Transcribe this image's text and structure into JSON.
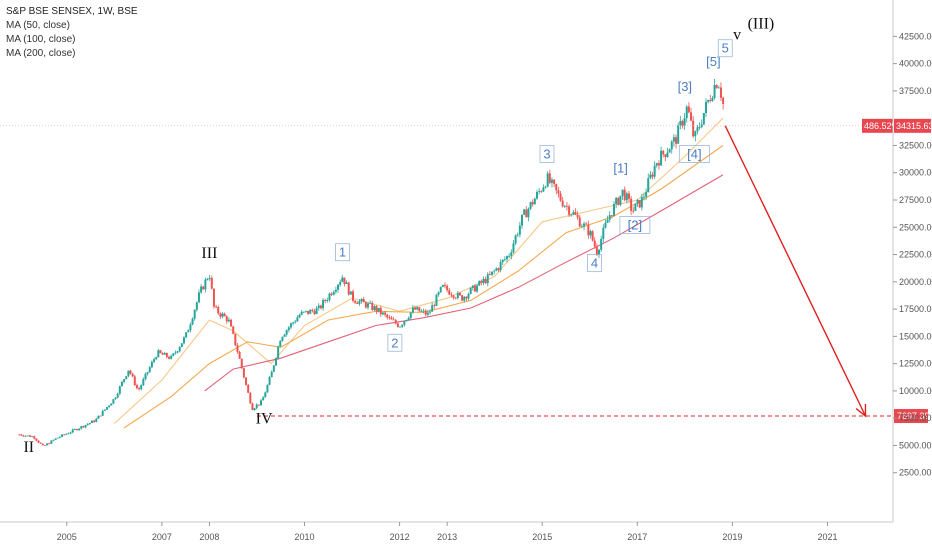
{
  "legend": {
    "title": "S&P BSE SENSEX, 1W, BSE",
    "ma50": "MA (50, close)",
    "ma100": "MA (100, close)",
    "ma200": "MA (200, close)"
  },
  "colors": {
    "up": "#26a69a",
    "down": "#ef5350",
    "ma50": "#f5c27a",
    "ma100": "#f2a03c",
    "ma200": "#e0506a",
    "arrow": "#e02020",
    "wave_blue": "#4a7fc1",
    "tag": "#e8474f"
  },
  "price_tags": {
    "percent": "486.52%",
    "price": "34315.63",
    "target": "7697.39"
  },
  "chart_data": {
    "type": "line",
    "title": "S&P BSE SENSEX, 1W, BSE",
    "xlabel": "",
    "ylabel": "",
    "x_ticks": [
      "2005",
      "2007",
      "2008",
      "2010",
      "2012",
      "2013",
      "2015",
      "2017",
      "2019",
      "2021"
    ],
    "x_tick_years": [
      2005,
      2007,
      2008,
      2010,
      2012,
      2013,
      2015,
      2017,
      2019,
      2021
    ],
    "y_ticks": [
      "2500.00",
      "5000.00",
      "7500.00",
      "10000.00",
      "12500.00",
      "15000.00",
      "17500.00",
      "20000.00",
      "22500.00",
      "25000.00",
      "27500.00",
      "30000.00",
      "32500.00",
      "37500.00",
      "40000.00",
      "42500.00"
    ],
    "y_tick_values": [
      2500,
      5000,
      7500,
      10000,
      12500,
      15000,
      17500,
      20000,
      22500,
      25000,
      27500,
      30000,
      32500,
      37500,
      40000,
      42500
    ],
    "ylim": [
      0,
      44000
    ],
    "xlim": [
      2003.7,
      2022.0
    ],
    "series": [
      {
        "name": "S&P BSE SENSEX",
        "points": [
          [
            2004.0,
            6000
          ],
          [
            2004.3,
            5800
          ],
          [
            2004.5,
            4900
          ],
          [
            2004.8,
            5700
          ],
          [
            2005.2,
            6500
          ],
          [
            2005.6,
            7300
          ],
          [
            2006.0,
            9300
          ],
          [
            2006.3,
            12000
          ],
          [
            2006.5,
            10000
          ],
          [
            2006.9,
            13500
          ],
          [
            2007.2,
            13000
          ],
          [
            2007.5,
            15000
          ],
          [
            2007.8,
            19000
          ],
          [
            2008.0,
            20800
          ],
          [
            2008.1,
            17500
          ],
          [
            2008.4,
            16500
          ],
          [
            2008.6,
            13500
          ],
          [
            2008.8,
            10000
          ],
          [
            2008.9,
            8400
          ],
          [
            2009.1,
            9000
          ],
          [
            2009.3,
            11500
          ],
          [
            2009.5,
            15000
          ],
          [
            2009.9,
            17000
          ],
          [
            2010.3,
            17500
          ],
          [
            2010.8,
            20500
          ],
          [
            2011.0,
            18500
          ],
          [
            2011.5,
            17500
          ],
          [
            2011.8,
            16500
          ],
          [
            2012.0,
            16000
          ],
          [
            2012.3,
            17500
          ],
          [
            2012.6,
            17000
          ],
          [
            2012.9,
            19500
          ],
          [
            2013.3,
            18500
          ],
          [
            2013.6,
            19500
          ],
          [
            2013.9,
            20500
          ],
          [
            2014.3,
            22500
          ],
          [
            2014.6,
            26000
          ],
          [
            2014.9,
            28000
          ],
          [
            2015.1,
            29500
          ],
          [
            2015.4,
            27500
          ],
          [
            2015.7,
            26000
          ],
          [
            2016.0,
            24500
          ],
          [
            2016.15,
            22800
          ],
          [
            2016.4,
            26000
          ],
          [
            2016.7,
            28300
          ],
          [
            2016.9,
            26500
          ],
          [
            2017.1,
            27500
          ],
          [
            2017.4,
            31000
          ],
          [
            2017.8,
            33000
          ],
          [
            2018.05,
            36000
          ],
          [
            2018.2,
            33000
          ],
          [
            2018.4,
            35500
          ],
          [
            2018.6,
            37800
          ],
          [
            2018.7,
            38600
          ],
          [
            2018.8,
            36500
          ],
          [
            2018.85,
            34300
          ]
        ]
      },
      {
        "name": "MA (50, close)",
        "points": [
          [
            2006.0,
            7000
          ],
          [
            2007.0,
            11000
          ],
          [
            2008.0,
            16500
          ],
          [
            2008.5,
            15500
          ],
          [
            2009.3,
            12500
          ],
          [
            2010.0,
            16000
          ],
          [
            2011.0,
            18500
          ],
          [
            2012.0,
            17300
          ],
          [
            2013.0,
            18500
          ],
          [
            2014.0,
            20500
          ],
          [
            2015.0,
            25500
          ],
          [
            2016.0,
            26500
          ],
          [
            2017.0,
            27500
          ],
          [
            2018.0,
            31500
          ],
          [
            2018.8,
            35000
          ]
        ]
      },
      {
        "name": "MA (100, close)",
        "points": [
          [
            2006.2,
            6600
          ],
          [
            2007.2,
            9500
          ],
          [
            2008.0,
            12500
          ],
          [
            2008.8,
            14500
          ],
          [
            2009.5,
            14000
          ],
          [
            2010.5,
            16500
          ],
          [
            2011.5,
            17300
          ],
          [
            2012.5,
            17200
          ],
          [
            2013.5,
            18300
          ],
          [
            2014.5,
            21000
          ],
          [
            2015.5,
            24500
          ],
          [
            2016.5,
            26000
          ],
          [
            2017.5,
            28500
          ],
          [
            2018.8,
            32500
          ]
        ]
      },
      {
        "name": "MA (200, close)",
        "points": [
          [
            2007.9,
            10000
          ],
          [
            2008.5,
            12000
          ],
          [
            2009.5,
            13000
          ],
          [
            2010.5,
            14500
          ],
          [
            2011.5,
            16000
          ],
          [
            2012.5,
            16700
          ],
          [
            2013.5,
            17600
          ],
          [
            2014.5,
            19500
          ],
          [
            2015.5,
            21800
          ],
          [
            2016.5,
            24000
          ],
          [
            2017.5,
            26500
          ],
          [
            2018.8,
            29800
          ]
        ]
      }
    ],
    "target_line": {
      "value": 7697.39,
      "from": 2009.0,
      "to": 2021.9
    },
    "projection": {
      "from": [
        2018.85,
        34300
      ],
      "to": [
        2021.8,
        7700
      ]
    },
    "annotations": [
      {
        "text": "II",
        "x": 2004.2,
        "y": 4400,
        "style": "roman",
        "box": false
      },
      {
        "text": "III",
        "x": 2008.0,
        "y": 22200,
        "style": "roman",
        "box": false
      },
      {
        "text": "IV",
        "x": 2009.15,
        "y": 7000,
        "style": "roman",
        "box": false
      },
      {
        "text": "(III)",
        "x": 2019.6,
        "y": 43200,
        "style": "roman",
        "box": false
      },
      {
        "text": "1",
        "x": 2010.8,
        "y": 22300,
        "style": "blue",
        "box": true
      },
      {
        "text": "2",
        "x": 2011.9,
        "y": 14000,
        "style": "blue",
        "box": true
      },
      {
        "text": "3",
        "x": 2015.1,
        "y": 31300,
        "style": "blue",
        "box": true
      },
      {
        "text": "4",
        "x": 2016.1,
        "y": 21300,
        "style": "blue",
        "box": true
      },
      {
        "text": "[1]",
        "x": 2016.65,
        "y": 30000,
        "style": "blue",
        "box": false
      },
      {
        "text": "[2]",
        "x": 2016.95,
        "y": 24800,
        "style": "blue",
        "box": true
      },
      {
        "text": "[3]",
        "x": 2018.0,
        "y": 37500,
        "style": "blue",
        "box": false
      },
      {
        "text": "[4]",
        "x": 2018.2,
        "y": 31300,
        "style": "blue",
        "box": true
      },
      {
        "text": "[5]",
        "x": 2018.6,
        "y": 39800,
        "style": "blue",
        "box": false
      },
      {
        "text": "5",
        "x": 2018.85,
        "y": 41000,
        "style": "blue",
        "box": true
      },
      {
        "text": "v",
        "x": 2019.1,
        "y": 42200,
        "style": "roman",
        "box": false
      }
    ]
  }
}
